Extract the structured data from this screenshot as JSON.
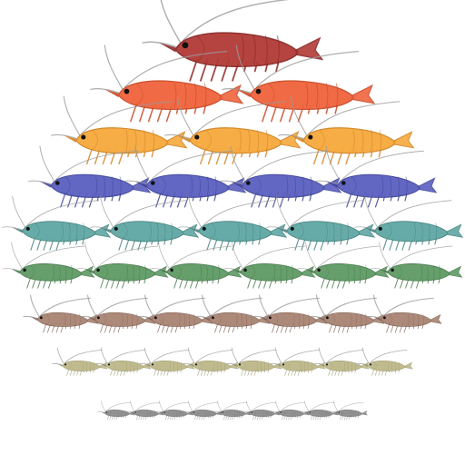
{
  "illustration": {
    "subject": "shrimp",
    "arrangement": "pyramid",
    "rows": [
      {
        "color": "#b23a36",
        "shade": "#8c2a28",
        "count": 1
      },
      {
        "color": "#f0643c",
        "shade": "#c84a28",
        "count": 2
      },
      {
        "color": "#f7a93c",
        "shade": "#d18424",
        "count": 3
      },
      {
        "color": "#5a5fc0",
        "shade": "#3f4496",
        "count": 4
      },
      {
        "color": "#5fa7a4",
        "shade": "#43807d",
        "count": 5
      },
      {
        "color": "#5e9a64",
        "shade": "#437548",
        "count": 6
      },
      {
        "color": "#a88372",
        "shade": "#7f6154",
        "count": 7
      },
      {
        "color": "#bdb889",
        "shade": "#928e63",
        "count": 8
      },
      {
        "color": "#8c8c8c",
        "shade": "#5f5f5f",
        "count": 9
      }
    ]
  }
}
